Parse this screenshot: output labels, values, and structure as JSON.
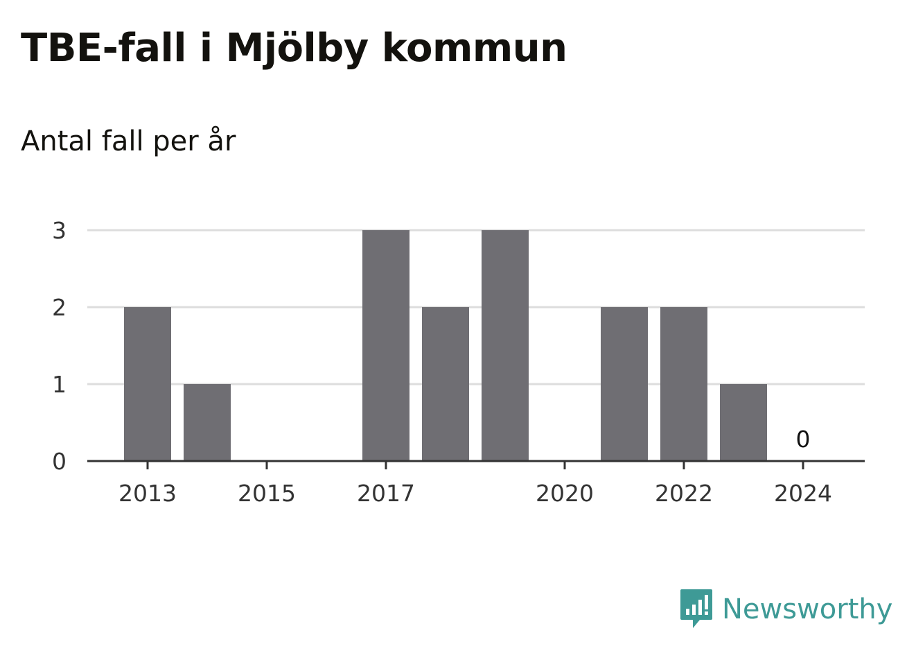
{
  "chart_data": {
    "type": "bar",
    "title": "TBE-fall i Mjölby kommun",
    "subtitle": "Antal fall per år",
    "categories": [
      "2013",
      "2014",
      "2015",
      "2016",
      "2017",
      "2018",
      "2019",
      "2020",
      "2021",
      "2022",
      "2023",
      "2024"
    ],
    "x_tick_labels": [
      "2013",
      "2015",
      "2017",
      "2020",
      "2022",
      "2024"
    ],
    "values": [
      2,
      1,
      0,
      0,
      3,
      2,
      3,
      0,
      2,
      2,
      1,
      0
    ],
    "ylim": [
      0,
      3
    ],
    "y_ticks": [
      "0",
      "1",
      "2",
      "3"
    ],
    "annotations": [
      {
        "category": "2024",
        "text": "0"
      }
    ],
    "grid": true,
    "colors": {
      "bar": "#6f6e73",
      "grid": "#dddddd",
      "axis": "#333333",
      "brand": "#3e9a96"
    }
  },
  "brand": {
    "name": "Newsworthy",
    "icon": "newsworthy-logo-icon"
  }
}
